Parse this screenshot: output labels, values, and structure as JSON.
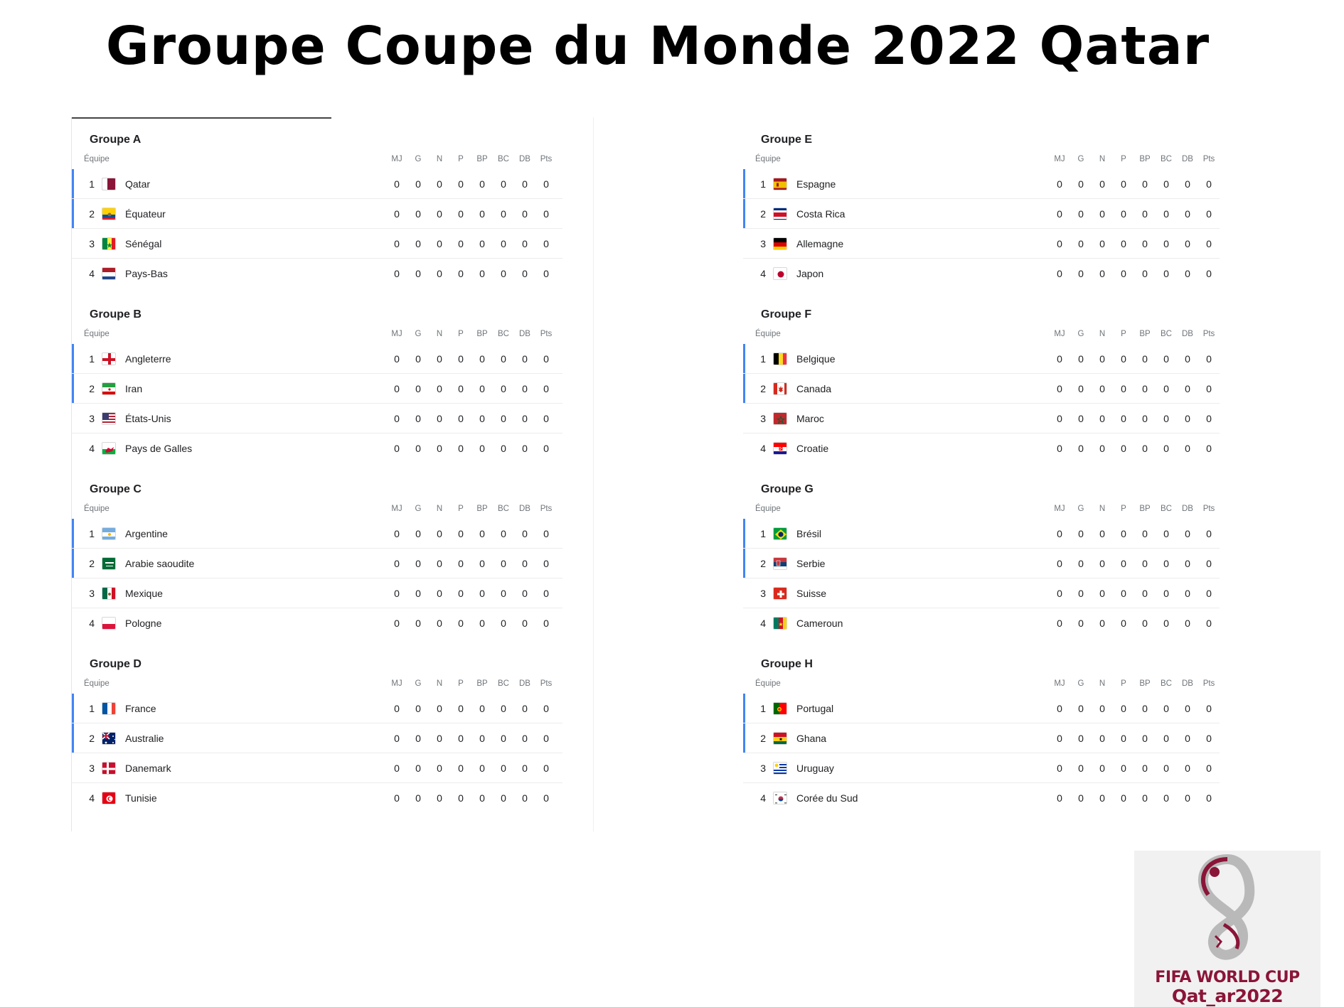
{
  "title": "Groupe Coupe du Monde 2022 Qatar",
  "columns": {
    "team": "Équipe",
    "stats": [
      "MJ",
      "G",
      "N",
      "P",
      "BP",
      "BC",
      "DB",
      "Pts"
    ]
  },
  "left_groups": [
    {
      "title": "Groupe A",
      "teams": [
        {
          "pos": "1",
          "name": "Qatar",
          "flag": "qatar-flag",
          "stats": [
            "0",
            "0",
            "0",
            "0",
            "0",
            "0",
            "0",
            "0"
          ]
        },
        {
          "pos": "2",
          "name": "Équateur",
          "flag": "ecuador-flag",
          "stats": [
            "0",
            "0",
            "0",
            "0",
            "0",
            "0",
            "0",
            "0"
          ]
        },
        {
          "pos": "3",
          "name": "Sénégal",
          "flag": "senegal-flag",
          "stats": [
            "0",
            "0",
            "0",
            "0",
            "0",
            "0",
            "0",
            "0"
          ]
        },
        {
          "pos": "4",
          "name": "Pays-Bas",
          "flag": "netherlands-flag",
          "stats": [
            "0",
            "0",
            "0",
            "0",
            "0",
            "0",
            "0",
            "0"
          ]
        }
      ]
    },
    {
      "title": "Groupe B",
      "teams": [
        {
          "pos": "1",
          "name": "Angleterre",
          "flag": "england-flag",
          "stats": [
            "0",
            "0",
            "0",
            "0",
            "0",
            "0",
            "0",
            "0"
          ]
        },
        {
          "pos": "2",
          "name": "Iran",
          "flag": "iran-flag",
          "stats": [
            "0",
            "0",
            "0",
            "0",
            "0",
            "0",
            "0",
            "0"
          ]
        },
        {
          "pos": "3",
          "name": "États-Unis",
          "flag": "usa-flag",
          "stats": [
            "0",
            "0",
            "0",
            "0",
            "0",
            "0",
            "0",
            "0"
          ]
        },
        {
          "pos": "4",
          "name": "Pays de Galles",
          "flag": "wales-flag",
          "stats": [
            "0",
            "0",
            "0",
            "0",
            "0",
            "0",
            "0",
            "0"
          ]
        }
      ]
    },
    {
      "title": "Groupe C",
      "teams": [
        {
          "pos": "1",
          "name": "Argentine",
          "flag": "argentina-flag",
          "stats": [
            "0",
            "0",
            "0",
            "0",
            "0",
            "0",
            "0",
            "0"
          ]
        },
        {
          "pos": "2",
          "name": "Arabie saoudite",
          "flag": "saudi-arabia-flag",
          "stats": [
            "0",
            "0",
            "0",
            "0",
            "0",
            "0",
            "0",
            "0"
          ]
        },
        {
          "pos": "3",
          "name": "Mexique",
          "flag": "mexico-flag",
          "stats": [
            "0",
            "0",
            "0",
            "0",
            "0",
            "0",
            "0",
            "0"
          ]
        },
        {
          "pos": "4",
          "name": "Pologne",
          "flag": "poland-flag",
          "stats": [
            "0",
            "0",
            "0",
            "0",
            "0",
            "0",
            "0",
            "0"
          ]
        }
      ]
    },
    {
      "title": "Groupe D",
      "teams": [
        {
          "pos": "1",
          "name": "France",
          "flag": "france-flag",
          "stats": [
            "0",
            "0",
            "0",
            "0",
            "0",
            "0",
            "0",
            "0"
          ]
        },
        {
          "pos": "2",
          "name": "Australie",
          "flag": "australia-flag",
          "stats": [
            "0",
            "0",
            "0",
            "0",
            "0",
            "0",
            "0",
            "0"
          ]
        },
        {
          "pos": "3",
          "name": "Danemark",
          "flag": "denmark-flag",
          "stats": [
            "0",
            "0",
            "0",
            "0",
            "0",
            "0",
            "0",
            "0"
          ]
        },
        {
          "pos": "4",
          "name": "Tunisie",
          "flag": "tunisia-flag",
          "stats": [
            "0",
            "0",
            "0",
            "0",
            "0",
            "0",
            "0",
            "0"
          ]
        }
      ]
    }
  ],
  "right_groups": [
    {
      "title": "Groupe E",
      "teams": [
        {
          "pos": "1",
          "name": "Espagne",
          "flag": "spain-flag",
          "stats": [
            "0",
            "0",
            "0",
            "0",
            "0",
            "0",
            "0",
            "0"
          ]
        },
        {
          "pos": "2",
          "name": "Costa Rica",
          "flag": "costa-rica-flag",
          "stats": [
            "0",
            "0",
            "0",
            "0",
            "0",
            "0",
            "0",
            "0"
          ]
        },
        {
          "pos": "3",
          "name": "Allemagne",
          "flag": "germany-flag",
          "stats": [
            "0",
            "0",
            "0",
            "0",
            "0",
            "0",
            "0",
            "0"
          ]
        },
        {
          "pos": "4",
          "name": "Japon",
          "flag": "japan-flag",
          "stats": [
            "0",
            "0",
            "0",
            "0",
            "0",
            "0",
            "0",
            "0"
          ]
        }
      ]
    },
    {
      "title": "Groupe F",
      "teams": [
        {
          "pos": "1",
          "name": "Belgique",
          "flag": "belgium-flag",
          "stats": [
            "0",
            "0",
            "0",
            "0",
            "0",
            "0",
            "0",
            "0"
          ]
        },
        {
          "pos": "2",
          "name": "Canada",
          "flag": "canada-flag",
          "stats": [
            "0",
            "0",
            "0",
            "0",
            "0",
            "0",
            "0",
            "0"
          ]
        },
        {
          "pos": "3",
          "name": "Maroc",
          "flag": "morocco-flag",
          "stats": [
            "0",
            "0",
            "0",
            "0",
            "0",
            "0",
            "0",
            "0"
          ]
        },
        {
          "pos": "4",
          "name": "Croatie",
          "flag": "croatia-flag",
          "stats": [
            "0",
            "0",
            "0",
            "0",
            "0",
            "0",
            "0",
            "0"
          ]
        }
      ]
    },
    {
      "title": "Groupe G",
      "teams": [
        {
          "pos": "1",
          "name": "Brésil",
          "flag": "brazil-flag",
          "stats": [
            "0",
            "0",
            "0",
            "0",
            "0",
            "0",
            "0",
            "0"
          ]
        },
        {
          "pos": "2",
          "name": "Serbie",
          "flag": "serbia-flag",
          "stats": [
            "0",
            "0",
            "0",
            "0",
            "0",
            "0",
            "0",
            "0"
          ]
        },
        {
          "pos": "3",
          "name": "Suisse",
          "flag": "switzerland-flag",
          "stats": [
            "0",
            "0",
            "0",
            "0",
            "0",
            "0",
            "0",
            "0"
          ]
        },
        {
          "pos": "4",
          "name": "Cameroun",
          "flag": "cameroon-flag",
          "stats": [
            "0",
            "0",
            "0",
            "0",
            "0",
            "0",
            "0",
            "0"
          ]
        }
      ]
    },
    {
      "title": "Groupe H",
      "teams": [
        {
          "pos": "1",
          "name": "Portugal",
          "flag": "portugal-flag",
          "stats": [
            "0",
            "0",
            "0",
            "0",
            "0",
            "0",
            "0",
            "0"
          ]
        },
        {
          "pos": "2",
          "name": "Ghana",
          "flag": "ghana-flag",
          "stats": [
            "0",
            "0",
            "0",
            "0",
            "0",
            "0",
            "0",
            "0"
          ]
        },
        {
          "pos": "3",
          "name": "Uruguay",
          "flag": "uruguay-flag",
          "stats": [
            "0",
            "0",
            "0",
            "0",
            "0",
            "0",
            "0",
            "0"
          ]
        },
        {
          "pos": "4",
          "name": "Corée du Sud",
          "flag": "south-korea-flag",
          "stats": [
            "0",
            "0",
            "0",
            "0",
            "0",
            "0",
            "0",
            "0"
          ]
        }
      ]
    }
  ],
  "logo": {
    "line1": "FIFA WORLD CUP",
    "line2": "Qat_ar2022",
    "icon": "world-cup-trophy-icon"
  },
  "colors": {
    "qualified_marker": "#4285f4",
    "logo_red": "#8a1538"
  }
}
